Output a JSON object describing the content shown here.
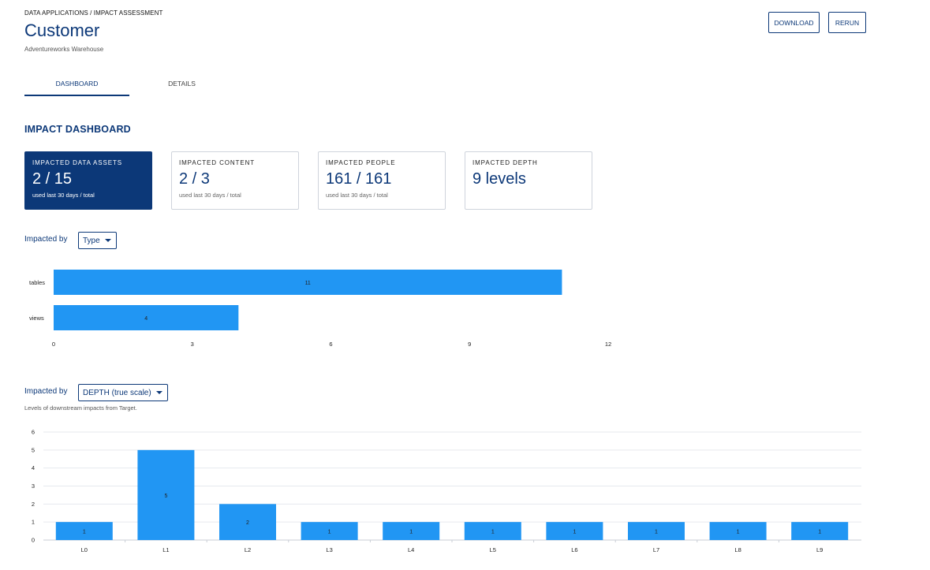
{
  "header": {
    "breadcrumb": "DATA APPLICATIONS / IMPACT ASSESSMENT",
    "title": "Customer",
    "subtitle": "Adventureworks Warehouse",
    "download_label": "DOWNLOAD",
    "rerun_label": "RERUN"
  },
  "tabs": [
    {
      "label": "DASHBOARD",
      "active": true
    },
    {
      "label": "DETAILS",
      "active": false
    }
  ],
  "section_title": "IMPACT DASHBOARD",
  "cards": [
    {
      "label": "IMPACTED DATA ASSETS",
      "value": "2 / 15",
      "sub": "used last 30 days / total"
    },
    {
      "label": "IMPACTED CONTENT",
      "value": "2 / 3",
      "sub": "used last 30 days / total"
    },
    {
      "label": "IMPACTED PEOPLE",
      "value": "161 / 161",
      "sub": "used last 30 days / total"
    },
    {
      "label": "IMPACTED DEPTH",
      "value": "9 levels",
      "sub": ""
    }
  ],
  "filter1": {
    "label": "Impacted by",
    "value": "Type"
  },
  "filter2": {
    "label": "Impacted by",
    "value": "DEPTH (true scale)",
    "caption": "Levels of downstream impacts from Target."
  },
  "colors": {
    "accent": "#0c3878",
    "bar": "#2196f3"
  },
  "chart_data": [
    {
      "type": "bar",
      "orientation": "horizontal",
      "categories": [
        "tables",
        "views"
      ],
      "values": [
        11,
        4
      ],
      "xlim": [
        0,
        12
      ],
      "xticks": [
        0,
        3,
        6,
        9,
        12
      ],
      "data_labels": true
    },
    {
      "type": "bar",
      "orientation": "vertical",
      "categories": [
        "L0",
        "L1",
        "L2",
        "L3",
        "L4",
        "L5",
        "L6",
        "L7",
        "L8",
        "L9"
      ],
      "values": [
        1,
        5,
        2,
        1,
        1,
        1,
        1,
        1,
        1,
        1
      ],
      "ylim": [
        0,
        6
      ],
      "yticks": [
        0,
        1,
        2,
        3,
        4,
        5,
        6
      ],
      "grid": true,
      "data_labels": true
    }
  ]
}
